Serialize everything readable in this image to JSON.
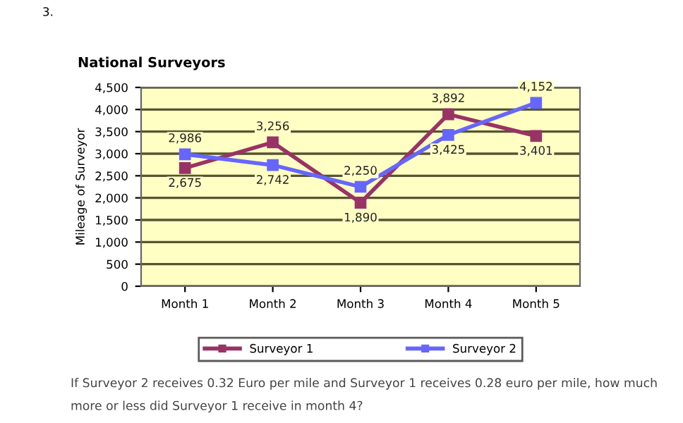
{
  "chart_data": {
    "type": "line",
    "title": "National Surveyors",
    "ylabel": "Mileage of Surveyor",
    "categories": [
      "Month 1",
      "Month 2",
      "Month 3",
      "Month 4",
      "Month 5"
    ],
    "series": [
      {
        "name": "Surveyor 1",
        "color": "#993366",
        "values": [
          2675,
          3256,
          1890,
          3892,
          3401
        ],
        "value_labels": [
          "2,675",
          "3,256",
          "1,890",
          "3,892",
          "3,401"
        ]
      },
      {
        "name": "Surveyor 2",
        "color": "#6666ff",
        "values": [
          2986,
          2742,
          2250,
          3425,
          4152
        ],
        "value_labels": [
          "2,986",
          "2,742",
          "2,250",
          "3,425",
          "4,152"
        ]
      }
    ],
    "ylim": [
      0,
      4500
    ],
    "yticks": [
      0,
      500,
      {
        "value": 1000,
        "label": "1,000"
      },
      {
        "value": 1500,
        "label": "1,500"
      },
      {
        "value": 2000,
        "label": "2,000"
      },
      {
        "value": 2500,
        "label": "2,500"
      },
      {
        "value": 3000,
        "label": "3,000"
      },
      {
        "value": 3500,
        "label": "3,500"
      },
      {
        "value": 4000,
        "label": "4,000"
      },
      {
        "value": 4500,
        "label": "4,500"
      }
    ],
    "grid": "y",
    "legend": "bottom",
    "marker": "square",
    "line_style": "solid",
    "annotations": [
      "3.",
      "If Surveyor 2 receives 0.32 Euro per mile and Surveyor 1 receives 0.28 euro per mile, how much more or less did Surveyor 1 receive in month 4?"
    ]
  }
}
